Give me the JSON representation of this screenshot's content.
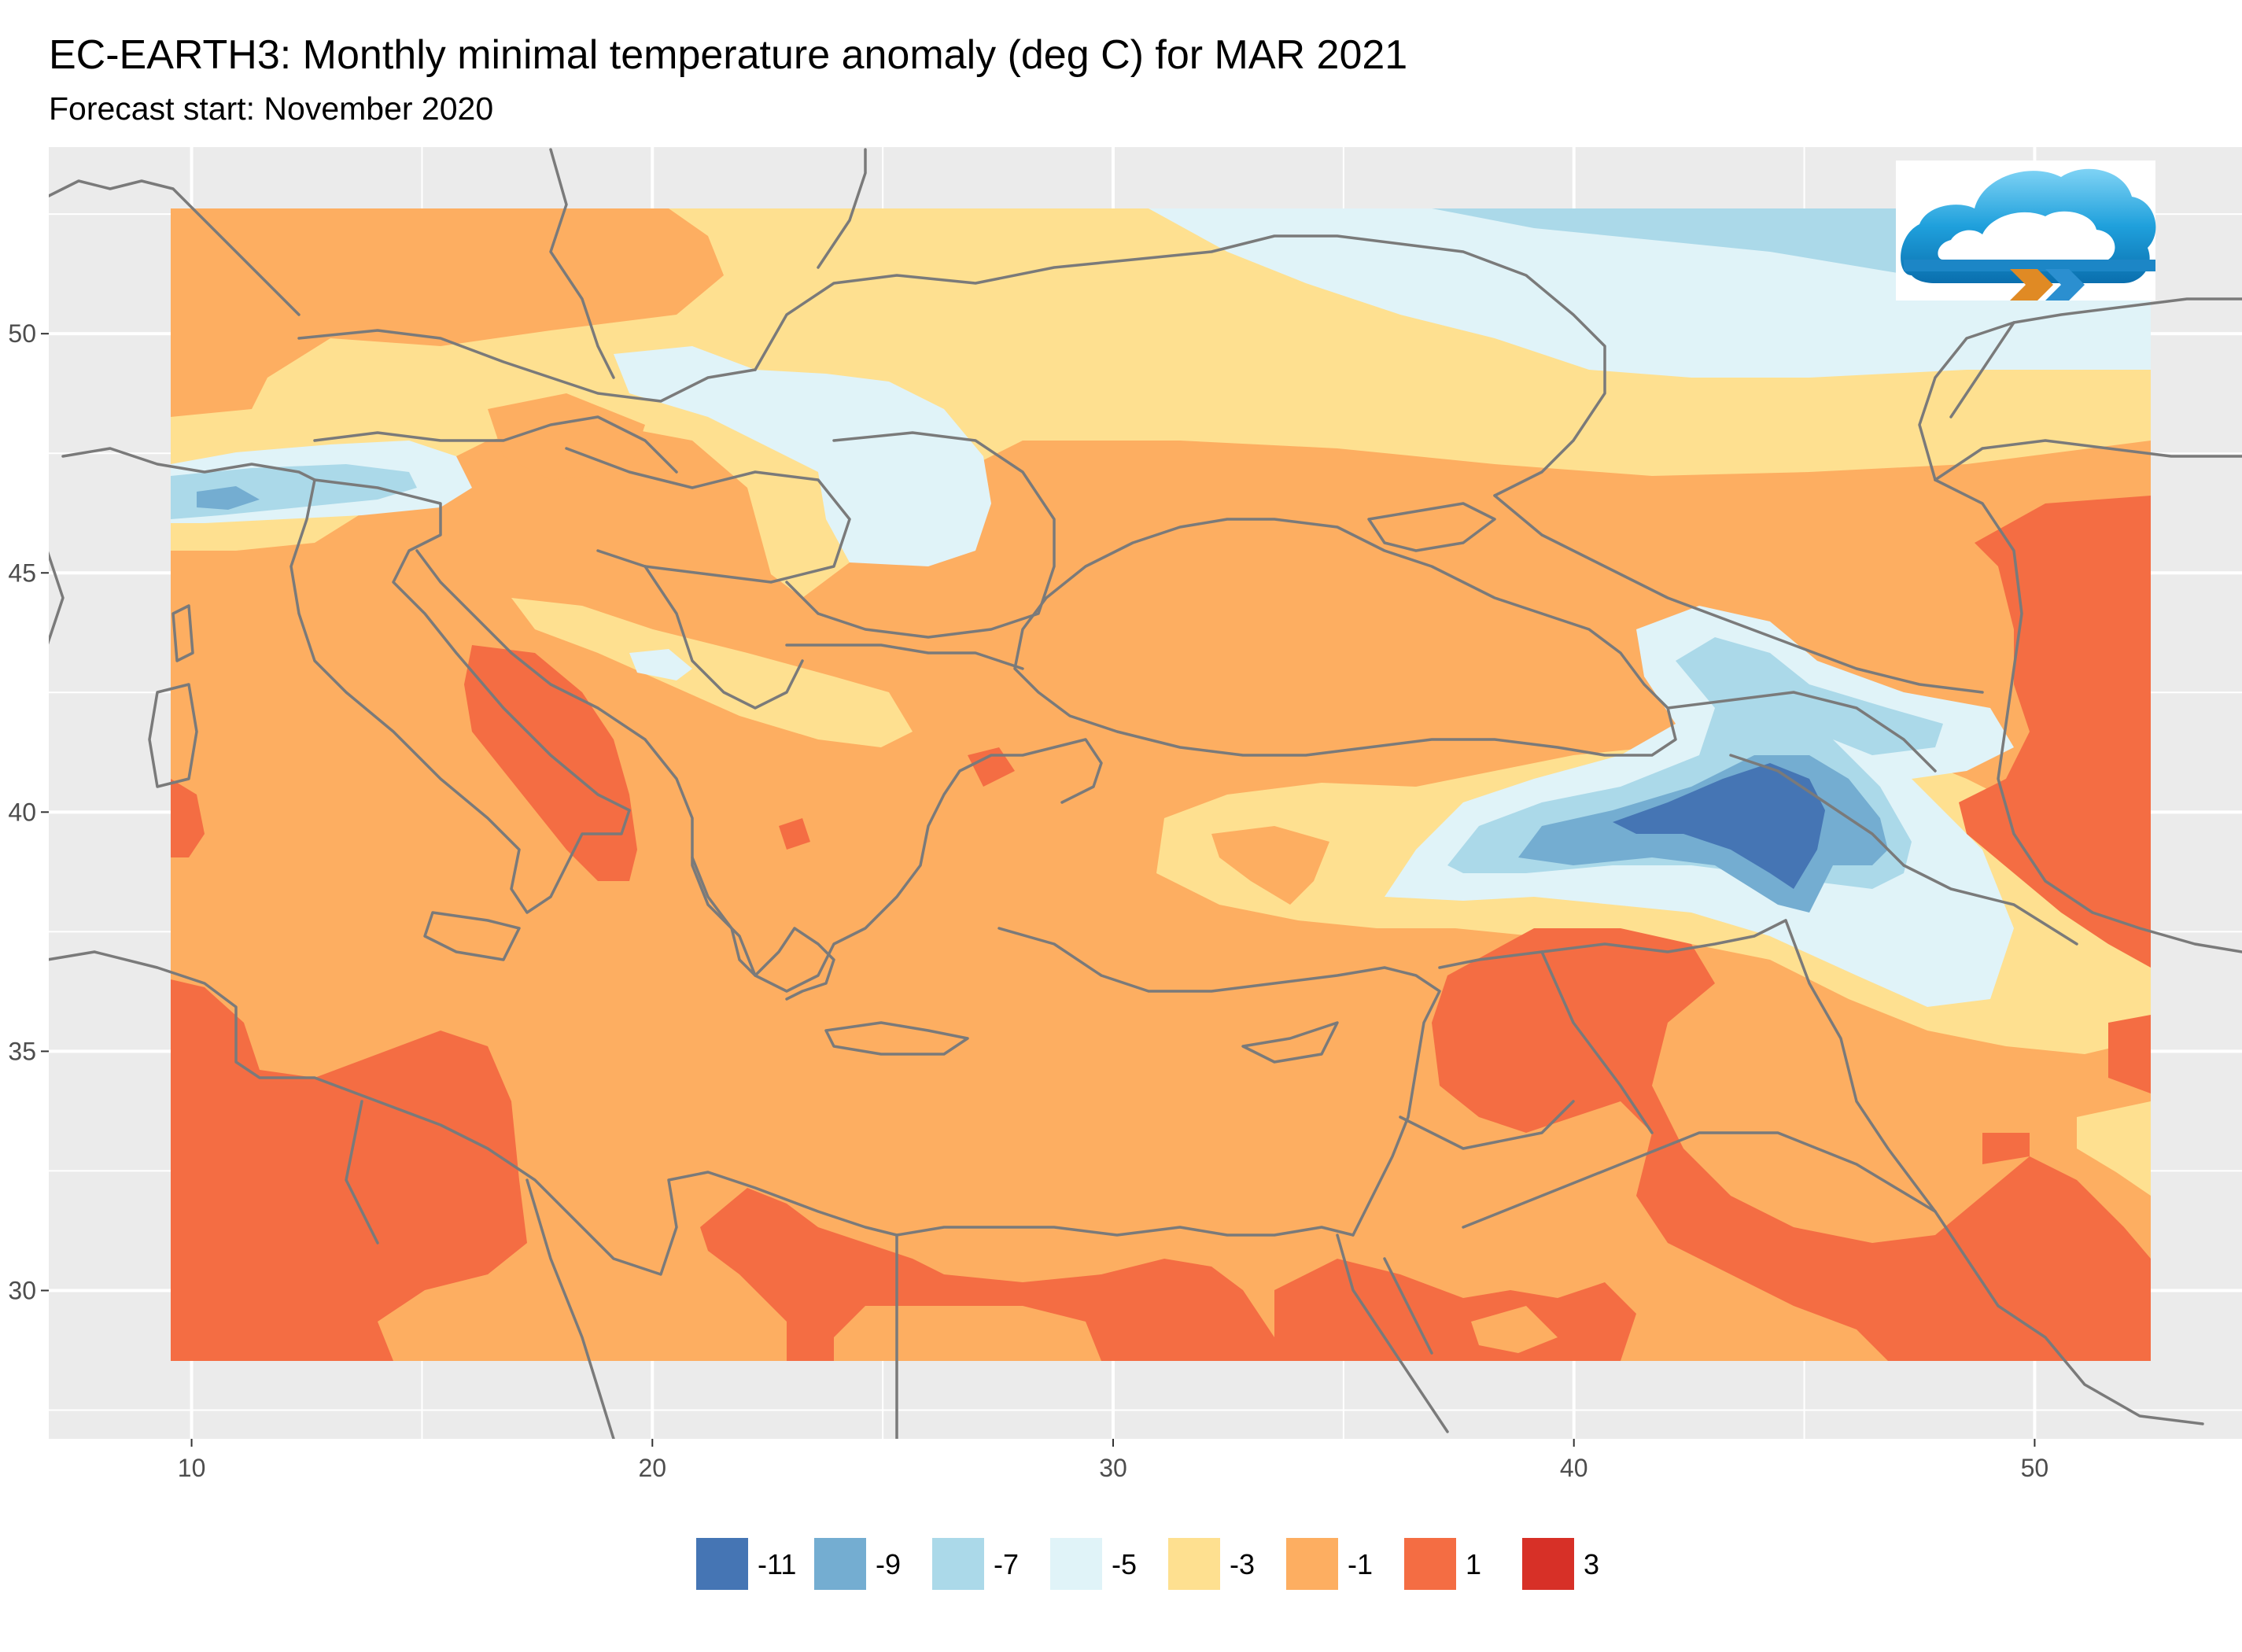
{
  "title": "EC-EARTH3: Monthly minimal temperature anomaly (deg C) for MAR 2021",
  "subtitle": "Forecast start: November 2020",
  "map": {
    "lon_range": [
      6.9,
      54.5
    ],
    "lat_range": [
      26.9,
      53.9
    ],
    "data_lon_range": [
      9.5,
      51.6
    ],
    "data_lat_range": [
      28.5,
      53.0
    ],
    "panel_background": "#ebebeb",
    "grid_color": "#ffffff",
    "border_color": "#7a7a7a",
    "x_ticks": [
      10,
      20,
      30,
      40,
      50
    ],
    "y_ticks": [
      30,
      35,
      40,
      45,
      50
    ],
    "x_tick_labels": [
      "10",
      "20",
      "30",
      "40",
      "50"
    ],
    "y_tick_labels": [
      "30",
      "35",
      "40",
      "45",
      "50"
    ],
    "logo_icon": "cloud-logo-icon"
  },
  "legend": {
    "items": [
      {
        "label": "-11",
        "color": "#4575b4"
      },
      {
        "label": "-9",
        "color": "#74add1"
      },
      {
        "label": "-7",
        "color": "#abd9e9"
      },
      {
        "label": "-5",
        "color": "#e0f3f8"
      },
      {
        "label": "-3",
        "color": "#fee090"
      },
      {
        "label": "-1",
        "color": "#fdae61"
      },
      {
        "label": "1",
        "color": "#f46d43"
      },
      {
        "label": "3",
        "color": "#d73027"
      }
    ]
  }
}
